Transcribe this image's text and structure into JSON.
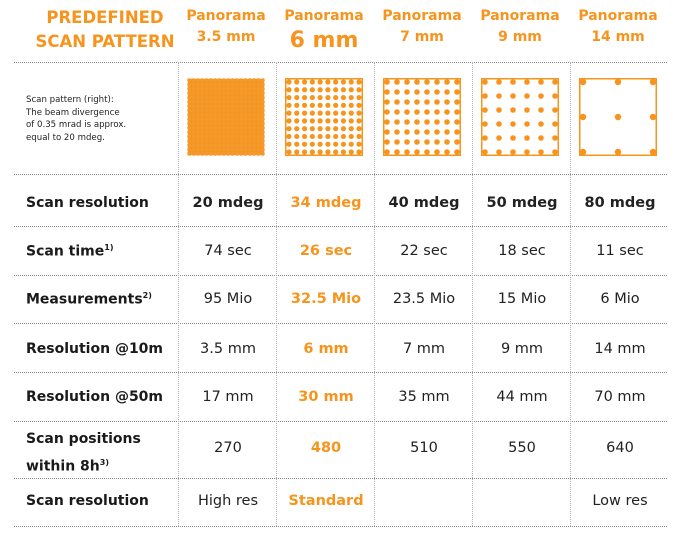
{
  "title": [
    "PREDEFINED",
    "SCAN PATTERN"
  ],
  "columns": [
    {
      "line1": "Panorama",
      "line2": "3.5 mm"
    },
    {
      "line1": "Panorama",
      "line2": "6 mm"
    },
    {
      "line1": "Panorama",
      "line2": "7 mm"
    },
    {
      "line1": "Panorama",
      "line2": "9 mm"
    },
    {
      "line1": "Panorama",
      "line2": "14 mm"
    }
  ],
  "pattern_note": [
    "Scan pattern (right):",
    "The beam divergence",
    "of 0.35 mrad is approx.",
    "equal to 20 mdeg."
  ],
  "rows": [
    {
      "label": "Scan resolution",
      "values": [
        "20 mdeg",
        "34 mdeg",
        "40 mdeg",
        "50 mdeg",
        "80 mdeg"
      ]
    },
    {
      "label": "Scan time",
      "sup": "1)",
      "values": [
        "74 sec",
        "26 sec",
        "22 sec",
        "18 sec",
        "11 sec"
      ]
    },
    {
      "label": "Measurements",
      "sup": "2)",
      "values": [
        "95 Mio",
        "32.5 Mio",
        "23.5 Mio",
        "15 Mio",
        "6 Mio"
      ]
    },
    {
      "label": "Resolution @10m",
      "values": [
        "3.5 mm",
        "6 mm",
        "7 mm",
        "9 mm",
        "14 mm"
      ]
    },
    {
      "label": "Resolution @50m",
      "values": [
        "17 mm",
        "30 mm",
        "35 mm",
        "44 mm",
        "70 mm"
      ]
    },
    {
      "label": [
        "Scan positions",
        "within 8h"
      ],
      "sup": "3)",
      "values": [
        "270",
        "480",
        "510",
        "550",
        "640"
      ]
    },
    {
      "label": "Scan resolution",
      "values": [
        "High res",
        "Standard",
        "",
        "",
        "Low res"
      ]
    }
  ],
  "accent_color": "#f7941d",
  "patterns": [
    {
      "grid": 18,
      "dot": "small-dense"
    },
    {
      "grid": 10,
      "dot": "medium"
    },
    {
      "grid": 8,
      "dot": "medium"
    },
    {
      "grid": 6,
      "dot": "medium"
    },
    {
      "grid": 3,
      "dot": "sparse"
    }
  ]
}
